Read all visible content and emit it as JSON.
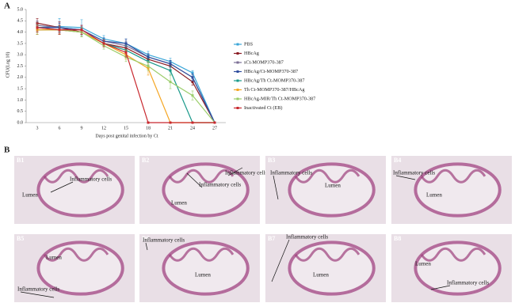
{
  "panel_a_label": "A",
  "chart_data": {
    "type": "line",
    "y_label": "CFU(Log 10)",
    "x_label": "Days post genital infection by Ct",
    "categories": [
      "3",
      "6",
      "9",
      "12",
      "15",
      "18",
      "21",
      "24",
      "27"
    ],
    "ylim": [
      0,
      5
    ],
    "yticks": [
      {
        "value": 0,
        "label": "0.0"
      },
      {
        "value": 0.5,
        "label": "0.5"
      },
      {
        "value": 1,
        "label": "1.0"
      },
      {
        "value": 1.5,
        "label": "1.5"
      },
      {
        "value": 2,
        "label": "2.0"
      },
      {
        "value": 2.5,
        "label": "2.5"
      },
      {
        "value": 3,
        "label": "3.0"
      },
      {
        "value": 3.5,
        "label": "3.5"
      },
      {
        "value": 4,
        "label": "4.0"
      },
      {
        "value": 4.5,
        "label": "4.5"
      },
      {
        "value": 5,
        "label": "5.0"
      }
    ],
    "series": [
      {
        "name": "PBS",
        "color": "#3aa6d8",
        "values": [
          4.2,
          4.25,
          4.2,
          3.7,
          3.5,
          3.0,
          2.7,
          2.2,
          0
        ],
        "errors": [
          0.3,
          0.35,
          0.35,
          0.15,
          0.2,
          0.15,
          0.15,
          0.1,
          null
        ]
      },
      {
        "name": "HBcAg",
        "color": "#8b1c24",
        "values": [
          4.4,
          4.2,
          4.0,
          3.5,
          3.3,
          2.8,
          2.5,
          1.8,
          0
        ],
        "errors": [
          0.2,
          0.25,
          0.2,
          0.15,
          0.2,
          0.15,
          0.15,
          0.15,
          null
        ]
      },
      {
        "name": "sCt-MOMP370-387",
        "color": "#7c6f96",
        "values": [
          4.3,
          4.2,
          4.1,
          3.6,
          3.4,
          2.9,
          2.6,
          2.0,
          0
        ],
        "errors": [
          0.2,
          0.2,
          0.2,
          0.15,
          0.2,
          0.15,
          0.15,
          0.15,
          null
        ]
      },
      {
        "name": "HBcAg/Ct-MOMP370-387",
        "color": "#2f4d9e",
        "values": [
          4.2,
          4.2,
          4.1,
          3.6,
          3.5,
          2.9,
          2.6,
          2.0,
          0
        ],
        "errors": [
          0.2,
          0.2,
          0.2,
          0.15,
          0.2,
          0.15,
          0.15,
          0.15,
          null
        ]
      },
      {
        "name": "HBcAg/Th Ct-MOMP370-387",
        "color": "#19998a",
        "values": [
          4.1,
          4.1,
          4.0,
          3.5,
          3.2,
          2.7,
          2.3,
          0,
          0
        ],
        "errors": [
          0.2,
          0.2,
          0.2,
          0.15,
          0.2,
          0.15,
          0.2,
          null,
          null
        ]
      },
      {
        "name": "Th Ct-MOMP370-387/HBcAg",
        "color": "#f5a623",
        "values": [
          4.1,
          4.1,
          4.0,
          3.5,
          3.0,
          2.4,
          0,
          0,
          0
        ],
        "errors": [
          0.2,
          0.2,
          0.2,
          0.15,
          0.2,
          0.3,
          null,
          null,
          null
        ]
      },
      {
        "name": "HBcAg-MIR/Th Ct-MOMP370-387",
        "color": "#9bcd6b",
        "values": [
          4.2,
          4.1,
          4.0,
          3.4,
          2.9,
          2.5,
          1.8,
          1.2,
          0
        ],
        "errors": [
          0.2,
          0.2,
          0.2,
          0.15,
          0.2,
          0.2,
          0.3,
          0.2,
          null
        ]
      },
      {
        "name": "Inactivated Ct (EB)",
        "color": "#c8282e",
        "values": [
          4.2,
          4.1,
          4.1,
          3.5,
          3.1,
          0,
          0,
          0,
          0
        ],
        "errors": [
          0.2,
          0.2,
          0.2,
          0.15,
          0.2,
          null,
          null,
          null,
          null
        ]
      }
    ]
  },
  "panel_b": {
    "label": "B",
    "images": [
      {
        "id": "B1",
        "labels": [
          "Inflammatory cells",
          "Lumen"
        ]
      },
      {
        "id": "B2",
        "labels": [
          "Inflammatory cells",
          "Inflammatory cells",
          "Lumen"
        ]
      },
      {
        "id": "B3",
        "labels": [
          "Inflammatory cells",
          "Lumen"
        ]
      },
      {
        "id": "B4",
        "labels": [
          "Inflammatory cells",
          "Lumen"
        ]
      },
      {
        "id": "B5",
        "labels": [
          "Lumen",
          "Inflammatory cells"
        ]
      },
      {
        "id": "B6",
        "labels": [
          "Inflammatory cells",
          "Lumen"
        ]
      },
      {
        "id": "B7",
        "labels": [
          "Inflammatory cells",
          "Lumen"
        ]
      },
      {
        "id": "B8",
        "labels": [
          "Lumen",
          "Inflammatory cells"
        ]
      }
    ]
  }
}
